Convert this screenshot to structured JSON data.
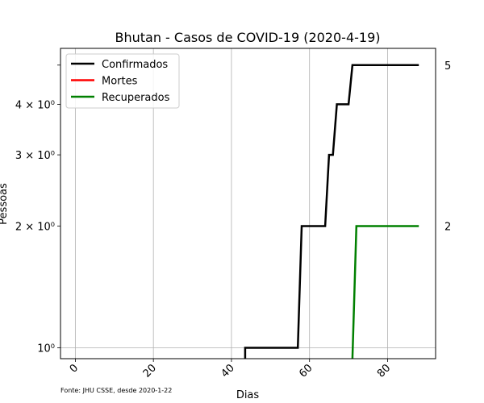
{
  "chart_data": {
    "type": "line",
    "title": "Bhutan - Casos de COVID-19 (2020-4-19)",
    "xlabel": "Dias",
    "ylabel": "Pessoas",
    "xlim": [
      -3.8,
      92.3
    ],
    "ylim": [
      0.94,
      5.5
    ],
    "yscale": "log",
    "grid": true,
    "legend_position": "upper left",
    "x_ticks": [
      0,
      20,
      40,
      60,
      80
    ],
    "y_ticks": [
      {
        "value": 1,
        "label": "10⁰"
      },
      {
        "value": 2,
        "label": "2 × 10⁰"
      },
      {
        "value": 3,
        "label": "3 × 10⁰"
      },
      {
        "value": 4,
        "label": "4 × 10⁰"
      }
    ],
    "right_labels": [
      {
        "value": 5,
        "label": "5"
      },
      {
        "value": 2,
        "label": "2"
      }
    ],
    "series": [
      {
        "name": "Confirmados",
        "color": "#000000",
        "x": [
          43.5,
          43.5,
          57,
          58,
          64,
          65,
          66,
          67,
          70,
          71,
          88
        ],
        "y": [
          0.94,
          1,
          1,
          2,
          2,
          3,
          3,
          4,
          4,
          5,
          5
        ]
      },
      {
        "name": "Mortes",
        "color": "#ff0000",
        "x": [],
        "y": []
      },
      {
        "name": "Recuperados",
        "color": "#008000",
        "x": [
          71,
          72,
          88
        ],
        "y": [
          0.94,
          2,
          2
        ]
      }
    ]
  },
  "footnote": "Fonte: JHU CSSE, desde 2020-1-22"
}
